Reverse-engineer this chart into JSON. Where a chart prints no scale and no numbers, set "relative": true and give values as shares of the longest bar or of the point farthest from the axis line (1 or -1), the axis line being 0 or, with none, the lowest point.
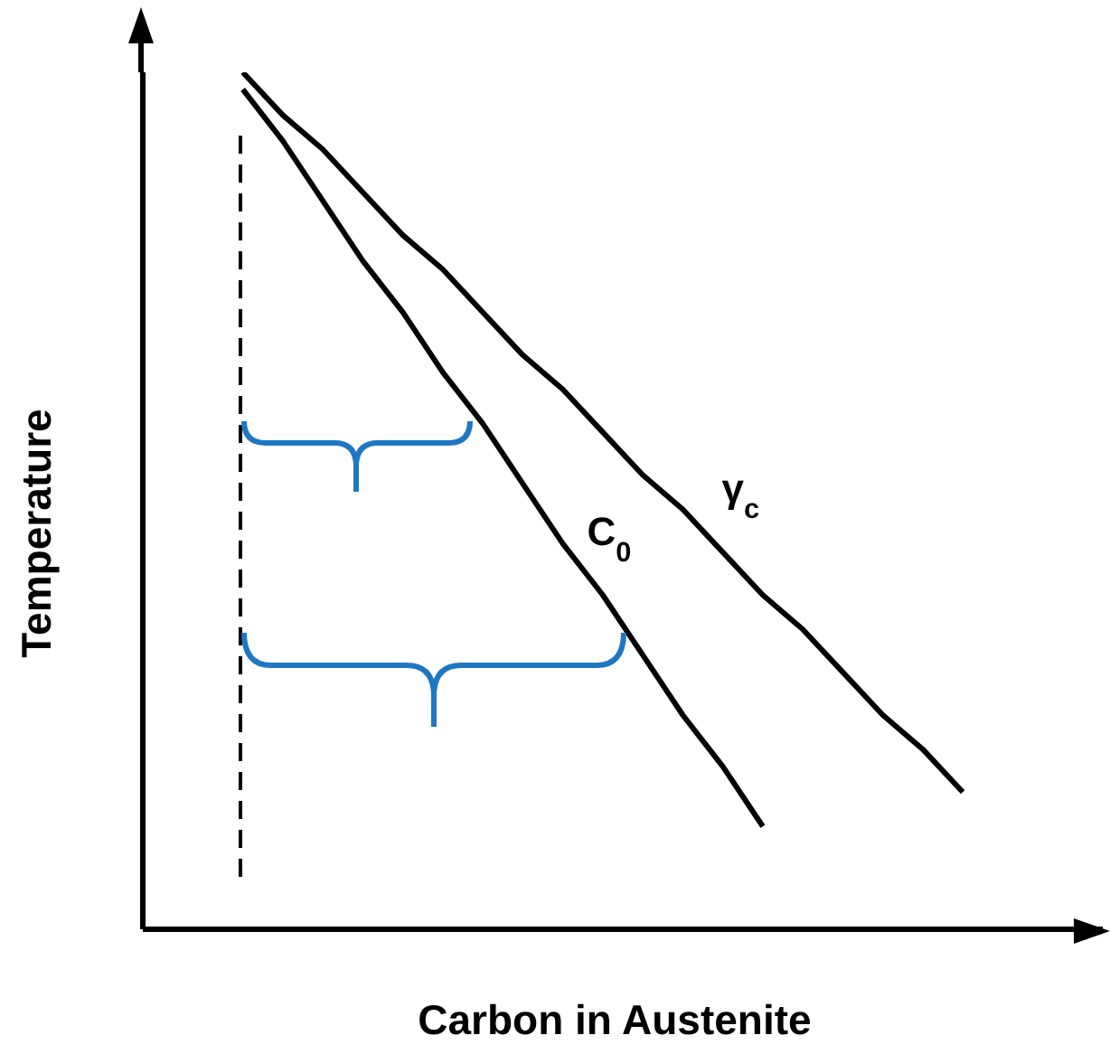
{
  "chart_data": {
    "type": "line",
    "relative": true,
    "xlabel": "Carbon in Austenite",
    "ylabel": "Temperature",
    "categories": [
      null,
      null,
      null,
      null,
      null,
      null,
      null,
      null,
      null,
      null,
      null,
      null,
      null,
      null,
      null,
      null,
      null,
      null,
      null,
      null,
      null,
      null,
      null,
      null
    ],
    "series": [
      {
        "name": "C$_{0}$",
        "color": "#000000",
        "values": [
          null,
          null,
          0.98,
          0.92,
          0.85,
          0.78,
          0.72,
          0.65,
          0.59,
          0.52,
          0.45,
          0.39,
          0.32,
          0.25,
          0.19,
          0.12,
          null,
          null,
          null,
          null,
          null,
          null,
          null,
          null
        ]
      },
      {
        "name": "γ$_{c}$",
        "color": "#000000",
        "values": [
          null,
          null,
          1.0,
          0.95,
          0.91,
          0.86,
          0.81,
          0.77,
          0.72,
          0.67,
          0.63,
          0.58,
          0.53,
          0.49,
          0.44,
          0.39,
          0.35,
          0.3,
          0.25,
          0.21,
          0.16,
          null,
          null,
          null
        ]
      }
    ],
    "legend": false,
    "grid": false,
    "marker": "none",
    "line_style": "solid"
  }
}
